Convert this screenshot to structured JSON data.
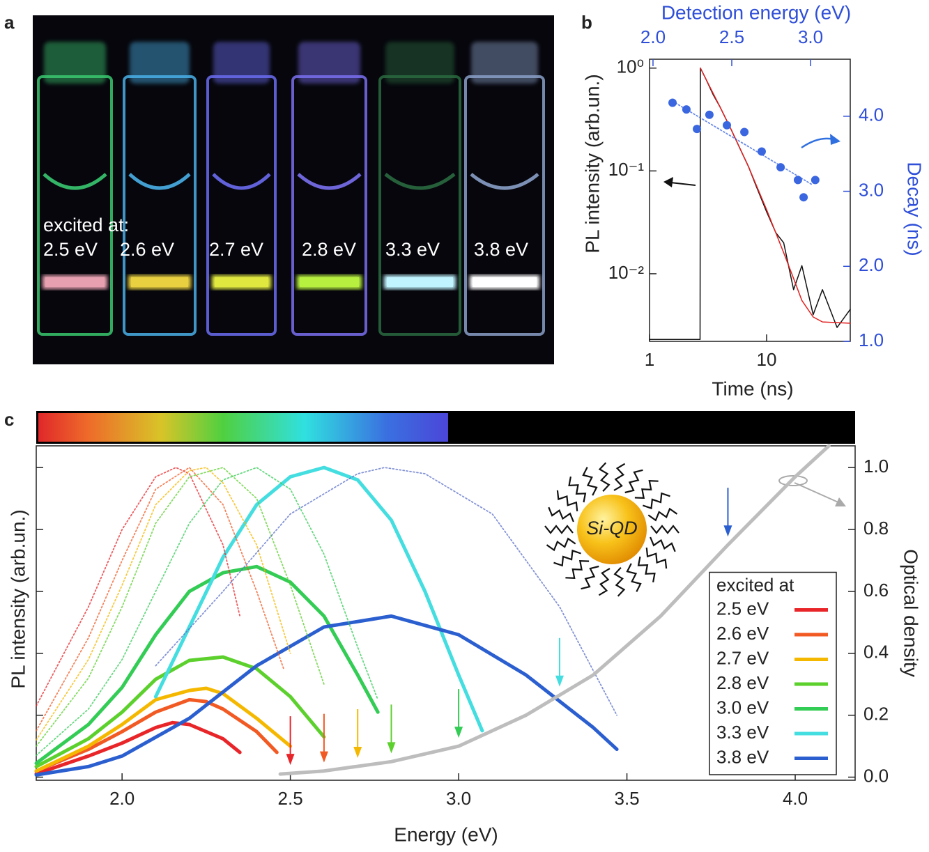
{
  "panel_labels": [
    "a",
    "b",
    "c"
  ],
  "photo": {
    "caption": "excited at:",
    "labels": [
      "2.5 eV",
      "2.6 eV",
      "2.7 eV",
      "2.8 eV",
      "3.3 eV",
      "3.8 eV"
    ]
  },
  "chart_data": [
    {
      "type": "line",
      "xlabel": "Time (ns)",
      "ylabel": "PL intensity (arb.un.)",
      "x2label": "Detection energy (eV)",
      "y2label": "Decay (ns)",
      "xscale": "log",
      "yscale": "log",
      "xlim": [
        1,
        51.8
      ],
      "xticks": [
        1,
        10
      ],
      "ylim": [
        0.0022,
        1.22
      ],
      "yticks": [
        {
          "value": 0.01,
          "label": "10⁻²"
        },
        {
          "value": 0.1,
          "label": "10⁻¹"
        },
        {
          "value": 1,
          "label": "10⁰"
        }
      ],
      "x2lim": [
        1.978,
        3.252
      ],
      "x2ticks": [
        {
          "value": 2.0,
          "label": "2.0"
        },
        {
          "value": 2.5,
          "label": "2.5"
        },
        {
          "value": 3.0,
          "label": "3.0"
        }
      ],
      "y2lim": [
        1.0,
        4.76
      ],
      "y2ticks": [
        {
          "value": 1.0,
          "label": "1.0"
        },
        {
          "value": 2.0,
          "label": "2.0"
        },
        {
          "value": 3.0,
          "label": "3.0"
        },
        {
          "value": 4.0,
          "label": "4.0"
        }
      ],
      "x2color": "#2f4fd8",
      "y2color": "#2f4fd8",
      "series": [
        {
          "color": "#111111",
          "x": [
            1.0,
            2.7,
            2.72,
            3,
            3.5,
            4,
            5,
            6,
            7,
            8,
            10,
            12,
            14,
            17,
            20,
            25,
            30,
            40,
            51.8
          ],
          "values": [
            0.0023,
            0.0023,
            1.0,
            0.8,
            0.55,
            0.42,
            0.25,
            0.16,
            0.11,
            0.075,
            0.04,
            0.025,
            0.02,
            0.007,
            0.012,
            0.004,
            0.007,
            0.003,
            0.0045
          ]
        },
        {
          "color": "#e02020",
          "x": [
            2.72,
            3,
            4,
            5,
            7,
            10,
            14,
            17,
            20,
            25,
            30,
            51.8
          ],
          "values": [
            1.0,
            0.8,
            0.42,
            0.25,
            0.11,
            0.042,
            0.016,
            0.009,
            0.0055,
            0.0038,
            0.0034,
            0.0033
          ]
        },
        {
          "type": "scatter",
          "color": "#3a66e0",
          "axis": "y2",
          "xaxis": "x2",
          "x": [
            2.124,
            2.212,
            2.279,
            2.358,
            2.469,
            2.58,
            2.69,
            2.81,
            2.92,
            2.956,
            3.03
          ],
          "values": [
            4.18,
            4.09,
            3.83,
            4.02,
            3.88,
            3.79,
            3.53,
            3.32,
            3.15,
            2.92,
            3.15
          ]
        },
        {
          "style": "dotted",
          "color": "#3a66e0",
          "axis": "y2",
          "xaxis": "x2",
          "x": [
            2.124,
            3.009
          ],
          "values": [
            4.2,
            3.09
          ]
        }
      ]
    },
    {
      "type": "line",
      "xlabel": "Energy (eV)",
      "ylabel": "PL intensity (arb.un.)",
      "y2label": "Optical density",
      "xlim": [
        1.745,
        4.178
      ],
      "xticks": [
        {
          "value": 2.0,
          "label": "2.0"
        },
        {
          "value": 2.5,
          "label": "2.5"
        },
        {
          "value": 3.0,
          "label": "3.0"
        },
        {
          "value": 3.5,
          "label": "3.5"
        },
        {
          "value": 4.0,
          "label": "4.0"
        }
      ],
      "ylim": [
        -0.01,
        1.07
      ],
      "yticks": [
        0,
        0.2,
        0.4,
        0.6,
        0.8,
        1
      ],
      "ytick_labels": false,
      "y2lim": [
        -0.01,
        1.07
      ],
      "y2ticks": [
        {
          "value": 0,
          "label": "0.0"
        },
        {
          "value": 0.2,
          "label": "0.2"
        },
        {
          "value": 0.4,
          "label": "0.4"
        },
        {
          "value": 0.6,
          "label": "0.6"
        },
        {
          "value": 0.8,
          "label": "0.8"
        },
        {
          "value": 1.0,
          "label": "1.0"
        }
      ],
      "legend": "lower right",
      "legend_title": "excited at",
      "inset_label": "Si-QD",
      "series": [
        {
          "name": "2.5 eV",
          "color": "#e8262a",
          "excitation": 2.5,
          "x": [
            1.745,
            1.9,
            2.0,
            2.1,
            2.15,
            2.2,
            2.3,
            2.35
          ],
          "values": [
            0.011,
            0.068,
            0.11,
            0.16,
            0.176,
            0.17,
            0.124,
            0.08
          ]
        },
        {
          "name": "2.6 eV",
          "color": "#f25a24",
          "excitation": 2.6,
          "x": [
            1.745,
            1.9,
            2.0,
            2.1,
            2.2,
            2.25,
            2.3,
            2.4,
            2.46
          ],
          "values": [
            0.02,
            0.09,
            0.147,
            0.21,
            0.25,
            0.244,
            0.22,
            0.147,
            0.08
          ]
        },
        {
          "name": "2.7 eV",
          "color": "#f5b800",
          "excitation": 2.7,
          "x": [
            1.745,
            1.9,
            2.0,
            2.1,
            2.2,
            2.25,
            2.3,
            2.4,
            2.5
          ],
          "values": [
            0.02,
            0.1,
            0.17,
            0.25,
            0.28,
            0.287,
            0.27,
            0.19,
            0.1
          ]
        },
        {
          "name": "2.8 eV",
          "color": "#5cd02c",
          "excitation": 2.8,
          "x": [
            1.745,
            1.9,
            2.0,
            2.1,
            2.2,
            2.3,
            2.4,
            2.5,
            2.6
          ],
          "values": [
            0.034,
            0.124,
            0.21,
            0.316,
            0.377,
            0.388,
            0.35,
            0.26,
            0.13
          ]
        },
        {
          "name": "3.0 eV",
          "color": "#33cc55",
          "excitation": 3.0,
          "x": [
            1.745,
            1.9,
            2.0,
            2.1,
            2.2,
            2.3,
            2.4,
            2.5,
            2.6,
            2.7,
            2.76
          ],
          "values": [
            0.045,
            0.17,
            0.29,
            0.46,
            0.6,
            0.66,
            0.68,
            0.63,
            0.52,
            0.33,
            0.21
          ]
        },
        {
          "name": "3.3 eV",
          "color": "#44dde0",
          "excitation": 3.3,
          "x": [
            2.1,
            2.2,
            2.3,
            2.4,
            2.5,
            2.6,
            2.7,
            2.8,
            2.9,
            3.0,
            3.07
          ],
          "values": [
            0.26,
            0.485,
            0.71,
            0.88,
            0.97,
            1.0,
            0.96,
            0.83,
            0.6,
            0.33,
            0.15
          ]
        },
        {
          "name": "3.8 eV",
          "color": "#2b5fd0",
          "excitation": 3.8,
          "x": [
            1.745,
            1.9,
            2.0,
            2.2,
            2.4,
            2.6,
            2.8,
            3.0,
            3.2,
            3.4,
            3.47
          ],
          "values": [
            0.007,
            0.034,
            0.068,
            0.19,
            0.36,
            0.485,
            0.52,
            0.46,
            0.33,
            0.16,
            0.09
          ]
        },
        {
          "style": "dotted",
          "color": "#e8262a",
          "x": [
            1.745,
            1.9,
            2.0,
            2.1,
            2.16,
            2.2,
            2.3,
            2.35
          ],
          "values": [
            0.23,
            0.55,
            0.8,
            0.97,
            1.0,
            0.98,
            0.75,
            0.52
          ]
        },
        {
          "style": "dotted",
          "color": "#f25a24",
          "x": [
            1.745,
            1.9,
            2.0,
            2.1,
            2.2,
            2.3,
            2.4,
            2.48
          ],
          "values": [
            0.15,
            0.45,
            0.7,
            0.93,
            1.0,
            0.88,
            0.6,
            0.35
          ]
        },
        {
          "style": "dotted",
          "color": "#f5b800",
          "x": [
            1.745,
            1.9,
            2.0,
            2.1,
            2.2,
            2.25,
            2.3,
            2.4,
            2.5
          ],
          "values": [
            0.12,
            0.38,
            0.62,
            0.88,
            0.99,
            1.0,
            0.95,
            0.75,
            0.4
          ]
        },
        {
          "style": "dotted",
          "color": "#5cd02c",
          "x": [
            1.745,
            1.9,
            2.0,
            2.1,
            2.2,
            2.3,
            2.4,
            2.5,
            2.6
          ],
          "values": [
            0.1,
            0.32,
            0.55,
            0.82,
            0.97,
            1.0,
            0.9,
            0.62,
            0.3
          ]
        },
        {
          "style": "dotted",
          "color": "#33cc55",
          "x": [
            1.745,
            1.9,
            2.0,
            2.1,
            2.2,
            2.3,
            2.4,
            2.5,
            2.6,
            2.7,
            2.76
          ],
          "values": [
            0.07,
            0.22,
            0.38,
            0.6,
            0.82,
            0.96,
            1.0,
            0.93,
            0.72,
            0.42,
            0.25
          ]
        },
        {
          "style": "dotted",
          "color": "#5a6fc8",
          "x": [
            2.1,
            2.3,
            2.5,
            2.7,
            2.78,
            2.9,
            3.1,
            3.3,
            3.47
          ],
          "values": [
            0.36,
            0.6,
            0.85,
            0.98,
            1.0,
            0.98,
            0.85,
            0.55,
            0.2
          ]
        },
        {
          "color": "#bdbdbd",
          "axis": "y2",
          "x": [
            2.47,
            2.6,
            2.8,
            3.0,
            3.2,
            3.4,
            3.6,
            3.8,
            4.0,
            4.1
          ],
          "values": [
            0.01,
            0.02,
            0.05,
            0.1,
            0.2,
            0.33,
            0.52,
            0.75,
            0.97,
            1.07
          ]
        }
      ]
    }
  ]
}
